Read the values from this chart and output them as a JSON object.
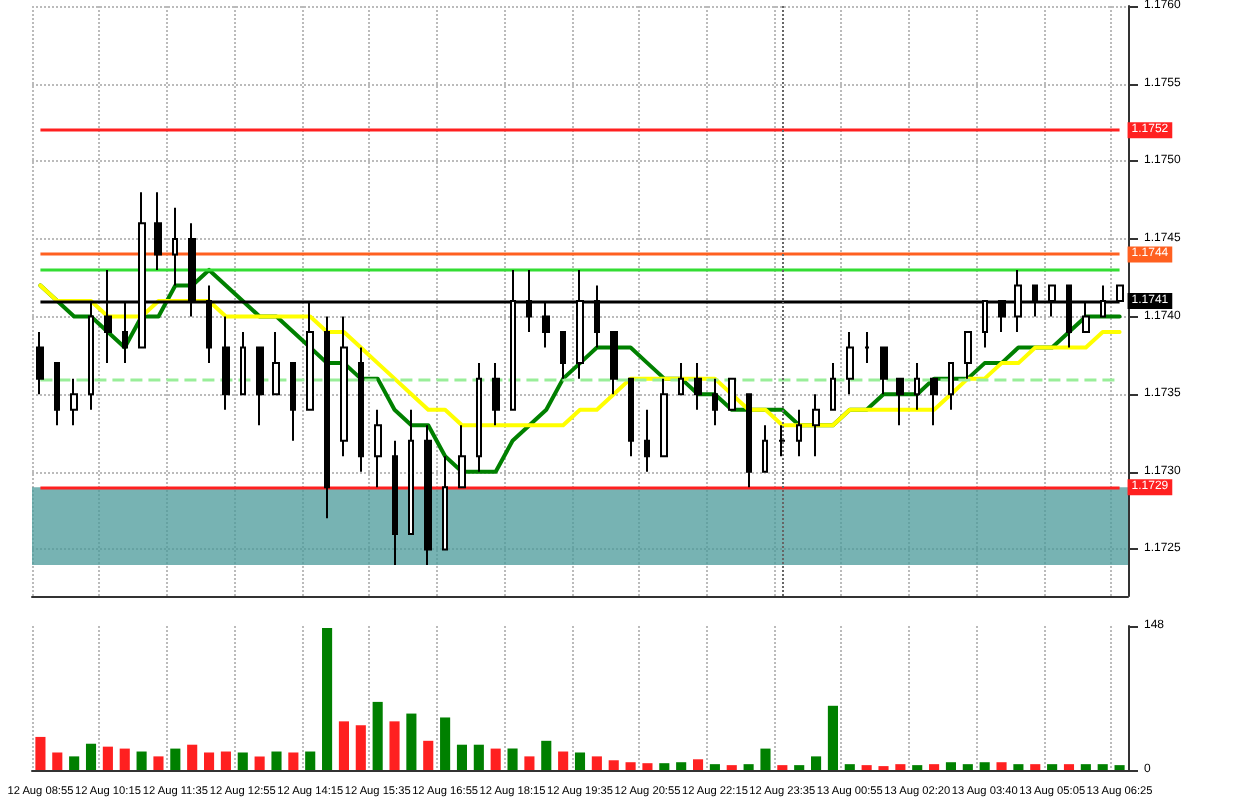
{
  "chart_data": [
    {
      "type": "candlestick",
      "tick_labels": "y",
      "grid": true,
      "categories": [
        "12 Aug 08:55",
        null,
        null,
        null,
        "12 Aug 10:15",
        null,
        null,
        null,
        "12 Aug 11:35",
        null,
        null,
        null,
        "12 Aug 12:55",
        null,
        null,
        null,
        "12 Aug 14:15",
        null,
        null,
        null,
        "12 Aug 15:35",
        null,
        null,
        null,
        "12 Aug 16:55",
        null,
        null,
        null,
        "12 Aug 18:15",
        null,
        null,
        null,
        "12 Aug 19:35",
        null,
        null,
        null,
        "12 Aug 20:55",
        null,
        null,
        null,
        "12 Aug 22:15",
        null,
        null,
        null,
        "12 Aug 23:35",
        null,
        null,
        null,
        "13 Aug 00:55",
        null,
        null,
        null,
        "13 Aug 02:20",
        null,
        null,
        null,
        "13 Aug 03:40",
        null,
        null,
        null,
        "13 Aug 05:05",
        null,
        null,
        null,
        "13 Aug 06:25"
      ],
      "ohlc": [
        [
          1.1738,
          1.1739,
          1.1735,
          1.1736
        ],
        [
          1.1737,
          1.1737,
          1.1733,
          1.1734
        ],
        [
          1.1734,
          1.1736,
          1.1733,
          1.1735
        ],
        [
          1.1735,
          1.1741,
          1.1734,
          1.174
        ],
        [
          1.174,
          1.1743,
          1.1737,
          1.1739
        ],
        [
          1.1739,
          1.1741,
          1.1737,
          1.1738
        ],
        [
          1.1738,
          1.1748,
          1.1738,
          1.1746
        ],
        [
          1.1746,
          1.1748,
          1.1743,
          1.1744
        ],
        [
          1.1744,
          1.1747,
          1.1742,
          1.1745
        ],
        [
          1.1745,
          1.1746,
          1.174,
          1.1741
        ],
        [
          1.1741,
          1.1742,
          1.1737,
          1.1738
        ],
        [
          1.1738,
          1.174,
          1.1734,
          1.1735
        ],
        [
          1.1735,
          1.1739,
          1.1735,
          1.1738
        ],
        [
          1.1738,
          1.1738,
          1.1733,
          1.1735
        ],
        [
          1.1735,
          1.1739,
          1.1735,
          1.1737
        ],
        [
          1.1737,
          1.1737,
          1.1732,
          1.1734
        ],
        [
          1.1734,
          1.1741,
          1.1734,
          1.1739
        ],
        [
          1.1739,
          1.174,
          1.1727,
          1.1729
        ],
        [
          1.1732,
          1.174,
          1.1731,
          1.1738
        ],
        [
          1.1737,
          1.1738,
          1.173,
          1.1731
        ],
        [
          1.1731,
          1.1734,
          1.1729,
          1.1733
        ],
        [
          1.1731,
          1.1732,
          1.1724,
          1.1726
        ],
        [
          1.1726,
          1.1734,
          1.1726,
          1.1732
        ],
        [
          1.1732,
          1.1733,
          1.1724,
          1.1725
        ],
        [
          1.1725,
          1.1731,
          1.1725,
          1.1729
        ],
        [
          1.1729,
          1.1733,
          1.1729,
          1.1731
        ],
        [
          1.1731,
          1.1737,
          1.173,
          1.1736
        ],
        [
          1.1736,
          1.1737,
          1.1733,
          1.1734
        ],
        [
          1.1734,
          1.1743,
          1.1734,
          1.1741
        ],
        [
          1.1741,
          1.1743,
          1.1739,
          1.174
        ],
        [
          1.174,
          1.1741,
          1.1738,
          1.1739
        ],
        [
          1.1739,
          1.1739,
          1.1736,
          1.1737
        ],
        [
          1.1737,
          1.1743,
          1.1736,
          1.1741
        ],
        [
          1.1741,
          1.1742,
          1.1738,
          1.1739
        ],
        [
          1.1739,
          1.1739,
          1.1735,
          1.1736
        ],
        [
          1.1736,
          1.1736,
          1.1731,
          1.1732
        ],
        [
          1.1732,
          1.1734,
          1.173,
          1.1731
        ],
        [
          1.1731,
          1.1736,
          1.1731,
          1.1735
        ],
        [
          1.1735,
          1.1737,
          1.1735,
          1.1736
        ],
        [
          1.1736,
          1.1737,
          1.1734,
          1.1735
        ],
        [
          1.1735,
          1.1736,
          1.1733,
          1.1734
        ],
        [
          1.1734,
          1.1736,
          1.1734,
          1.1736
        ],
        [
          1.1735,
          1.1735,
          1.1729,
          1.173
        ],
        [
          1.173,
          1.1733,
          1.173,
          1.1732
        ],
        [
          1.1732,
          1.1733,
          1.1731,
          1.1732
        ],
        [
          1.1732,
          1.1734,
          1.1731,
          1.1733
        ],
        [
          1.1733,
          1.1735,
          1.1731,
          1.1734
        ],
        [
          1.1734,
          1.1737,
          1.1734,
          1.1736
        ],
        [
          1.1736,
          1.1739,
          1.1735,
          1.1738
        ],
        [
          1.1738,
          1.1739,
          1.1737,
          1.1738
        ],
        [
          1.1738,
          1.1738,
          1.1735,
          1.1736
        ],
        [
          1.1736,
          1.1736,
          1.1733,
          1.1735
        ],
        [
          1.1735,
          1.1737,
          1.1734,
          1.1736
        ],
        [
          1.1736,
          1.1736,
          1.1733,
          1.1735
        ],
        [
          1.1735,
          1.1737,
          1.1734,
          1.1737
        ],
        [
          1.1737,
          1.1739,
          1.1736,
          1.1739
        ],
        [
          1.1739,
          1.1741,
          1.1738,
          1.1741
        ],
        [
          1.1741,
          1.1741,
          1.1739,
          1.174
        ],
        [
          1.174,
          1.1743,
          1.1739,
          1.1742
        ],
        [
          1.1742,
          1.1742,
          1.174,
          1.1741
        ],
        [
          1.1741,
          1.1742,
          1.174,
          1.1742
        ],
        [
          1.1742,
          1.1742,
          1.1738,
          1.1739
        ],
        [
          1.1739,
          1.1741,
          1.1739,
          1.174
        ],
        [
          1.174,
          1.1742,
          1.174,
          1.1741
        ],
        [
          1.1741,
          1.1742,
          1.1741,
          1.1742
        ]
      ],
      "series": [
        {
          "type": "line",
          "color": "#008000",
          "values": [
            1.1742,
            1.1741,
            1.174,
            1.174,
            1.1739,
            1.1738,
            1.174,
            1.174,
            1.1742,
            1.1742,
            1.1743,
            1.1742,
            1.1741,
            1.174,
            1.174,
            1.1739,
            1.1738,
            1.1737,
            1.1737,
            1.1736,
            1.1736,
            1.1734,
            1.1733,
            1.1733,
            1.1731,
            1.173,
            1.173,
            1.173,
            1.1732,
            1.1733,
            1.1734,
            1.1736,
            1.1737,
            1.1738,
            1.1738,
            1.1738,
            1.1737,
            1.1736,
            1.1736,
            1.1735,
            1.1735,
            1.1734,
            1.1734,
            1.1734,
            1.1734,
            1.1733,
            1.1733,
            1.1733,
            1.1734,
            1.1734,
            1.1735,
            1.1735,
            1.1735,
            1.1736,
            1.1736,
            1.1736,
            1.1737,
            1.1737,
            1.1738,
            1.1738,
            1.1738,
            1.1739,
            1.174,
            1.174,
            1.174
          ]
        },
        {
          "type": "line",
          "color": "#ffff00",
          "values": [
            1.1742,
            1.1741,
            1.1741,
            1.1741,
            1.174,
            1.174,
            1.174,
            1.1741,
            1.1741,
            1.1741,
            1.1741,
            1.174,
            1.174,
            1.174,
            1.174,
            1.174,
            1.174,
            1.1739,
            1.1739,
            1.1738,
            1.1737,
            1.1736,
            1.1735,
            1.1734,
            1.1734,
            1.1733,
            1.1733,
            1.1733,
            1.1733,
            1.1733,
            1.1733,
            1.1733,
            1.1734,
            1.1734,
            1.1735,
            1.1736,
            1.1736,
            1.1736,
            1.1736,
            1.1736,
            1.1736,
            1.1735,
            1.1734,
            1.1734,
            1.1733,
            1.1733,
            1.1733,
            1.1733,
            1.1734,
            1.1734,
            1.1734,
            1.1734,
            1.1734,
            1.1734,
            1.1735,
            1.1736,
            1.1736,
            1.1737,
            1.1737,
            1.1738,
            1.1738,
            1.1738,
            1.1738,
            1.1739,
            1.1739
          ]
        }
      ],
      "ylim": [
        1.1722,
        1.176
      ],
      "yticks": [
        1.1725,
        {
          "value": 1.173,
          "label": "1.1730"
        },
        1.1735,
        {
          "value": 1.174,
          "label": "1.1740"
        },
        1.1745,
        {
          "value": 1.175,
          "label": "1.1750"
        },
        1.1755,
        {
          "value": 1.176,
          "label": "1.1760"
        }
      ],
      "ref_lines": [
        {
          "axis": "y",
          "value": 1.1752,
          "label": "1.1752",
          "color": "#ff2020"
        },
        {
          "axis": "y",
          "value": 1.1744,
          "label": "1.1744",
          "color": "#ff6020"
        },
        {
          "axis": "y",
          "value": 1.1743,
          "color": "#33dd33"
        },
        {
          "axis": "y",
          "value": 1.1741,
          "label": "1.1741",
          "color": "#000000"
        },
        {
          "axis": "y",
          "value": 1.1736,
          "color": "#99ee99",
          "line_style": "dashed"
        },
        {
          "axis": "y",
          "value": 1.1729,
          "label": "1.1729",
          "color": "#ff2020"
        },
        {
          "axis": "x",
          "value": "12 Aug 23:35",
          "color": "#666666",
          "line_style": "dotted"
        }
      ],
      "bands": [
        {
          "axis": "y",
          "from": 1.1724,
          "to": 1.1729,
          "color": "#4a9a9a"
        }
      ]
    },
    {
      "type": "bar",
      "grid": "x",
      "categories": [
        "12 Aug 08:55",
        null,
        null,
        null,
        "12 Aug 10:15",
        null,
        null,
        null,
        "12 Aug 11:35",
        null,
        null,
        null,
        "12 Aug 12:55",
        null,
        null,
        null,
        "12 Aug 14:15",
        null,
        null,
        null,
        "12 Aug 15:35",
        null,
        null,
        null,
        "12 Aug 16:55",
        null,
        null,
        null,
        "12 Aug 18:15",
        null,
        null,
        null,
        "12 Aug 19:35",
        null,
        null,
        null,
        "12 Aug 20:55",
        null,
        null,
        null,
        "12 Aug 22:15",
        null,
        null,
        null,
        "12 Aug 23:35",
        null,
        null,
        null,
        "13 Aug 00:55",
        null,
        null,
        null,
        "13 Aug 02:20",
        null,
        null,
        null,
        "13 Aug 03:40",
        null,
        null,
        null,
        "13 Aug 05:05",
        null,
        null,
        null,
        "13 Aug 06:25"
      ],
      "values": [
        34,
        18,
        14,
        27,
        24,
        22,
        19,
        14,
        22,
        26,
        18,
        19,
        18,
        14,
        19,
        18,
        19,
        146,
        50,
        46,
        70,
        50,
        58,
        30,
        54,
        26,
        26,
        22,
        22,
        14,
        30,
        19,
        18,
        14,
        10,
        8,
        7,
        7,
        8,
        11,
        6,
        5,
        6,
        22,
        5,
        5,
        14,
        66,
        6,
        5,
        4,
        6,
        5,
        6,
        8,
        6,
        8,
        8,
        6,
        6,
        6,
        6,
        6,
        6,
        5
      ],
      "colors": [
        "#ff2020",
        "#ff2020",
        "#008000",
        "#008000",
        "#ff2020",
        "#ff2020",
        "#008000",
        "#ff2020",
        "#008000",
        "#ff2020",
        "#ff2020",
        "#ff2020",
        "#008000",
        "#ff2020",
        "#008000",
        "#ff2020",
        "#008000",
        "#008000",
        "#ff2020",
        "#ff2020",
        "#008000",
        "#ff2020",
        "#008000",
        "#ff2020",
        "#008000",
        "#008000",
        "#008000",
        "#ff2020",
        "#008000",
        "#ff2020",
        "#008000",
        "#ff2020",
        "#008000",
        "#ff2020",
        "#ff2020",
        "#ff2020",
        "#ff2020",
        "#008000",
        "#008000",
        "#ff2020",
        "#008000",
        "#ff2020",
        "#008000",
        "#008000",
        "#ff2020",
        "#008000",
        "#008000",
        "#008000",
        "#008000",
        "#ff2020",
        "#ff2020",
        "#ff2020",
        "#008000",
        "#ff2020",
        "#008000",
        "#008000",
        "#008000",
        "#ff2020",
        "#008000",
        "#ff2020",
        "#008000",
        "#ff2020",
        "#008000",
        "#008000",
        "#008000"
      ],
      "ylim": [
        0,
        148
      ],
      "yticks": [
        0,
        148
      ]
    }
  ]
}
